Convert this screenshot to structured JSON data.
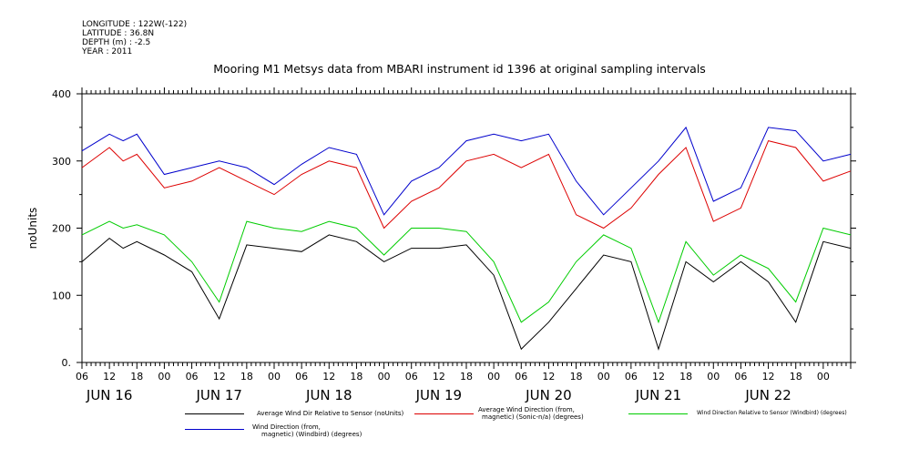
{
  "meta": {
    "lines": [
      "LONGITUDE : 122W(-122)",
      "LATITUDE : 36.8N",
      "DEPTH (m) : -2.5",
      "YEAR : 2011"
    ]
  },
  "title": "Mooring M1 Metsys data from MBARI instrument id 1396 at original sampling intervals",
  "chart_data": {
    "type": "line",
    "title": "Mooring M1 Metsys data from MBARI instrument id 1396 at original sampling intervals",
    "xlabel": "",
    "ylabel": "noUnits",
    "ylim": [
      0,
      400
    ],
    "y_ticks": [
      0,
      100,
      200,
      300,
      400
    ],
    "y_tick_labels": [
      "0.",
      "100",
      "200",
      "300",
      "400"
    ],
    "x_range_hours": [
      0,
      168
    ],
    "x_hour_ticks": [
      "06",
      "12",
      "18",
      "00",
      "06",
      "12",
      "18",
      "00",
      "06",
      "12",
      "18",
      "00",
      "06",
      "12",
      "18",
      "00",
      "06",
      "12",
      "18",
      "00",
      "06",
      "12",
      "18",
      "00",
      "06",
      "12",
      "18",
      "00"
    ],
    "x_day_labels": [
      "JUN 16",
      "JUN 17",
      "JUN 18",
      "JUN 19",
      "JUN 20",
      "JUN 21",
      "JUN 22"
    ],
    "x": [
      0,
      6,
      9,
      12,
      18,
      24,
      30,
      36,
      42,
      48,
      54,
      60,
      66,
      72,
      78,
      84,
      90,
      96,
      102,
      108,
      114,
      120,
      126,
      132,
      138,
      144,
      150,
      156,
      162,
      168
    ],
    "series": [
      {
        "name": "Average Wind Dir Relative to Sensor (noUnits)",
        "color": "#000000",
        "values": [
          150,
          185,
          170,
          180,
          160,
          135,
          65,
          175,
          170,
          165,
          190,
          180,
          150,
          170,
          170,
          175,
          130,
          20,
          60,
          110,
          160,
          150,
          20,
          150,
          120,
          150,
          120,
          60,
          180,
          170
        ]
      },
      {
        "name": "Average Wind Direction (from, magnetic) (Sonic-n/a) (degrees)",
        "color": "#dd0000",
        "values": [
          290,
          320,
          300,
          310,
          260,
          270,
          290,
          270,
          250,
          280,
          300,
          290,
          200,
          240,
          260,
          300,
          310,
          290,
          310,
          220,
          200,
          230,
          280,
          320,
          210,
          230,
          330,
          320,
          270,
          285
        ]
      },
      {
        "name": "Wind Direction Relative to Sensor (Windbird) (degrees)",
        "color": "#00cc00",
        "values": [
          190,
          210,
          200,
          205,
          190,
          150,
          90,
          210,
          200,
          195,
          210,
          200,
          160,
          200,
          200,
          195,
          150,
          60,
          90,
          150,
          190,
          170,
          60,
          180,
          130,
          160,
          140,
          90,
          200,
          190
        ]
      },
      {
        "name": "Wind Direction (from, magnetic) (Windbird) (degrees)",
        "color": "#0000cc",
        "values": [
          315,
          340,
          330,
          340,
          280,
          290,
          300,
          290,
          265,
          295,
          320,
          310,
          220,
          270,
          290,
          330,
          340,
          330,
          340,
          270,
          220,
          260,
          300,
          350,
          240,
          260,
          350,
          345,
          300,
          310
        ]
      }
    ],
    "legend_placement": "bottom",
    "grid": false
  },
  "legend": [
    {
      "label_1": "Average Wind Dir Relative to Sensor (noUnits)",
      "label_2": "",
      "color": "#000000"
    },
    {
      "label_1": "Average Wind Direction (from,",
      "label_2": "magnetic) (Sonic-n/a) (degrees)",
      "color": "#dd0000"
    },
    {
      "label_1": "Wind Direction Relative to Sensor (Windbird) (degrees)",
      "label_2": "",
      "color": "#00cc00"
    },
    {
      "label_1": "Wind Direction (from,",
      "label_2": "magnetic) (Windbird) (degrees)",
      "color": "#0000cc"
    }
  ]
}
